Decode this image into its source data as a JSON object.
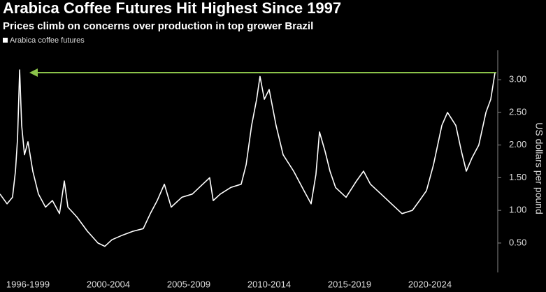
{
  "chart_data": {
    "type": "line",
    "title": "Arabica Coffee Futures Hit Highest Since 1997",
    "subtitle": "Prices climb on concerns over production in top grower Brazil",
    "y_axis_label": "US dollars per pound",
    "xlim": [
      1995.76,
      2026.63
    ],
    "ylim": [
      0.05,
      3.45
    ],
    "yticks": [
      {
        "value": 0.5,
        "label": "0.50"
      },
      {
        "value": 1,
        "label": "1.00"
      },
      {
        "value": 1.5,
        "label": "1.50"
      },
      {
        "value": 2,
        "label": "2.00"
      },
      {
        "value": 2.5,
        "label": "2.50"
      },
      {
        "value": 3,
        "label": "3.00"
      }
    ],
    "xticks": [
      {
        "value": 1997.5,
        "label": "1996-1999"
      },
      {
        "value": 2002.5,
        "label": "2000-2004"
      },
      {
        "value": 2007.5,
        "label": "2005-2009"
      },
      {
        "value": 2012.5,
        "label": "2010-2014"
      },
      {
        "value": 2017.5,
        "label": "2015-2019"
      },
      {
        "value": 2022.5,
        "label": "2020-2024"
      }
    ],
    "legend_position": "top-left",
    "series": [
      {
        "name": "Arabica coffee futures",
        "color": "#ffffff",
        "x": [
          1995.76,
          1996.2,
          1996.54,
          1996.72,
          1996.85,
          1996.98,
          1997.11,
          1997.28,
          1997.5,
          1997.8,
          1998.15,
          1998.59,
          1999.02,
          1999.46,
          1999.76,
          1999.98,
          2000.54,
          2001.2,
          2001.85,
          2002.28,
          2002.72,
          2003.37,
          2004.02,
          2004.67,
          2005.11,
          2005.54,
          2005.98,
          2006.41,
          2007.07,
          2007.72,
          2008.37,
          2008.8,
          2009.02,
          2009.46,
          2010.11,
          2010.76,
          2011.07,
          2011.41,
          2011.72,
          2011.93,
          2012.2,
          2012.5,
          2012.93,
          2013.37,
          2014.02,
          2014.67,
          2015.11,
          2015.41,
          2015.63,
          2015.98,
          2016.28,
          2016.63,
          2017.28,
          2017.93,
          2018.37,
          2018.8,
          2019.46,
          2020.11,
          2020.76,
          2021.41,
          2021.85,
          2022.28,
          2022.72,
          2023.24,
          2023.59,
          2024.11,
          2024.46,
          2024.76,
          2025.11,
          2025.54,
          2025.98,
          2026.28,
          2026.54
        ],
        "values": [
          1.25,
          1.1,
          1.2,
          1.6,
          2.1,
          3.15,
          2.3,
          1.85,
          2.05,
          1.6,
          1.25,
          1.05,
          1.15,
          0.95,
          1.45,
          1.05,
          0.9,
          0.68,
          0.5,
          0.45,
          0.55,
          0.62,
          0.68,
          0.72,
          0.95,
          1.15,
          1.4,
          1.05,
          1.2,
          1.25,
          1.4,
          1.5,
          1.15,
          1.25,
          1.35,
          1.4,
          1.7,
          2.3,
          2.7,
          3.05,
          2.7,
          2.85,
          2.3,
          1.85,
          1.6,
          1.3,
          1.1,
          1.55,
          2.2,
          1.9,
          1.6,
          1.35,
          1.2,
          1.45,
          1.6,
          1.4,
          1.25,
          1.1,
          0.95,
          1.0,
          1.15,
          1.3,
          1.7,
          2.3,
          2.5,
          2.3,
          1.9,
          1.6,
          1.8,
          2.0,
          2.5,
          2.7,
          3.1
        ]
      }
    ]
  }
}
